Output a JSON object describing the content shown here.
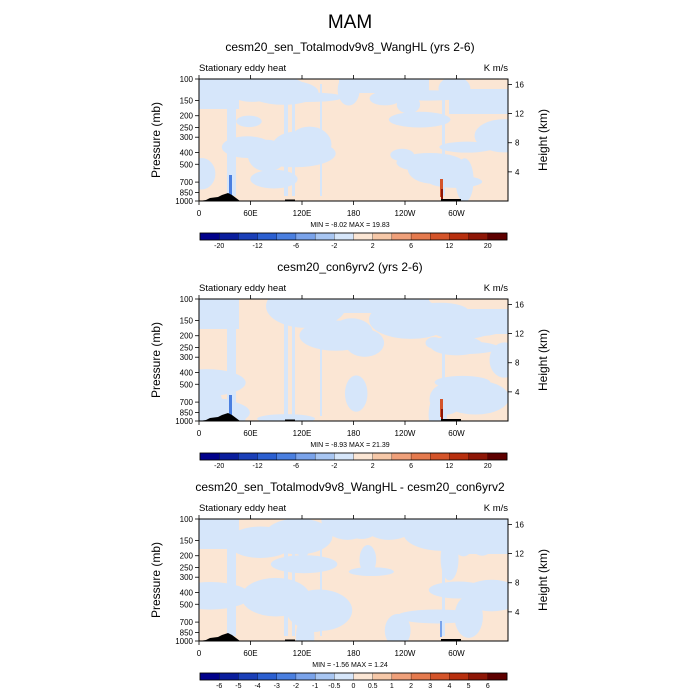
{
  "page": {
    "title": "MAM"
  },
  "chart_data": [
    {
      "type": "heatmap",
      "title": "cesm20_sen_Totalmodv9v8_WangHL (yrs 2-6)",
      "left_label": "Stationary eddy heat",
      "units": "K m/s",
      "ylabel": "Pressure (mb)",
      "y2label": "Height (km)",
      "yticks": [
        "100",
        "150",
        "200",
        "250",
        "300",
        "400",
        "500",
        "700",
        "850",
        "1000"
      ],
      "ytick_values": [
        100,
        150,
        200,
        250,
        300,
        400,
        500,
        700,
        850,
        1000
      ],
      "y2ticks": [
        "4",
        "8",
        "12",
        "16"
      ],
      "y2tick_values": [
        4,
        8,
        12,
        16
      ],
      "xticks": [
        "0",
        "60E",
        "120E",
        "180",
        "120W",
        "60W"
      ],
      "xtick_values": [
        0,
        60,
        120,
        180,
        240,
        300
      ],
      "xlim": [
        0,
        360
      ],
      "ylim": [
        1000,
        100
      ],
      "minmax_text": "MIN = -8.02  MAX = 19.83",
      "min": -8.02,
      "max": 19.83,
      "colorbar_labels": [
        "-20",
        "-12",
        "-6",
        "-2",
        "2",
        "6",
        "12",
        "20"
      ],
      "colorbar_levels": [
        -20,
        -16,
        -12,
        -8,
        -6,
        -4,
        -2,
        -1,
        1,
        2,
        4,
        6,
        8,
        12,
        16,
        20
      ]
    },
    {
      "type": "heatmap",
      "title": "cesm20_con6yrv2 (yrs 2-6)",
      "left_label": "Stationary eddy heat",
      "units": "K m/s",
      "ylabel": "Pressure (mb)",
      "y2label": "Height (km)",
      "yticks": [
        "100",
        "150",
        "200",
        "250",
        "300",
        "400",
        "500",
        "700",
        "850",
        "1000"
      ],
      "ytick_values": [
        100,
        150,
        200,
        250,
        300,
        400,
        500,
        700,
        850,
        1000
      ],
      "y2ticks": [
        "4",
        "8",
        "12",
        "16"
      ],
      "y2tick_values": [
        4,
        8,
        12,
        16
      ],
      "xticks": [
        "0",
        "60E",
        "120E",
        "180",
        "120W",
        "60W"
      ],
      "xtick_values": [
        0,
        60,
        120,
        180,
        240,
        300
      ],
      "xlim": [
        0,
        360
      ],
      "ylim": [
        1000,
        100
      ],
      "minmax_text": "MIN = -8.93  MAX = 21.39",
      "min": -8.93,
      "max": 21.39,
      "colorbar_labels": [
        "-20",
        "-12",
        "-6",
        "-2",
        "2",
        "6",
        "12",
        "20"
      ],
      "colorbar_levels": [
        -20,
        -16,
        -12,
        -8,
        -6,
        -4,
        -2,
        -1,
        1,
        2,
        4,
        6,
        8,
        12,
        16,
        20
      ]
    },
    {
      "type": "heatmap",
      "title": "cesm20_sen_Totalmodv9v8_WangHL - cesm20_con6yrv2",
      "left_label": "Stationary eddy heat",
      "units": "K m/s",
      "ylabel": "Pressure (mb)",
      "y2label": "Height (km)",
      "yticks": [
        "100",
        "150",
        "200",
        "250",
        "300",
        "400",
        "500",
        "700",
        "850",
        "1000"
      ],
      "ytick_values": [
        100,
        150,
        200,
        250,
        300,
        400,
        500,
        700,
        850,
        1000
      ],
      "y2ticks": [
        "4",
        "8",
        "12",
        "16"
      ],
      "y2tick_values": [
        4,
        8,
        12,
        16
      ],
      "xticks": [
        "0",
        "60E",
        "120E",
        "180",
        "120W",
        "60W"
      ],
      "xtick_values": [
        0,
        60,
        120,
        180,
        240,
        300
      ],
      "xlim": [
        0,
        360
      ],
      "ylim": [
        1000,
        100
      ],
      "minmax_text": "MIN = -1.56  MAX =  1.24",
      "min": -1.56,
      "max": 1.24,
      "colorbar_labels": [
        "-6",
        "-5",
        "-4",
        "-3",
        "-2",
        "-1",
        "-0.5",
        "0",
        "0.5",
        "1",
        "2",
        "3",
        "4",
        "5",
        "6"
      ],
      "colorbar_levels": [
        -6,
        -5,
        -4,
        -3,
        -2,
        -1,
        -0.5,
        0,
        0.5,
        1,
        2,
        3,
        4,
        5,
        6
      ]
    }
  ],
  "colors": {
    "colorbar": [
      "#00008b",
      "#0a1e9e",
      "#1a3fb8",
      "#2b5fd1",
      "#4a7fe0",
      "#7aa3ea",
      "#a8c6f2",
      "#d6e6fa",
      "#fbe6d4",
      "#f6c8a8",
      "#efa07a",
      "#e47a4e",
      "#d4542a",
      "#b8300f",
      "#8e1606",
      "#5e0000"
    ],
    "weak_negative": "#d6e6fa",
    "weak_positive": "#fbe6d4",
    "terrain": "#000000"
  }
}
